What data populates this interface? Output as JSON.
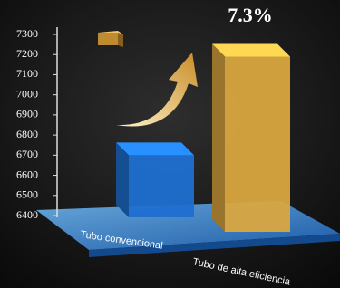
{
  "chart_data": {
    "type": "bar3d",
    "annotation": "7.3%",
    "categories": [
      "Tubo convencional",
      "Tubo de alta eficiencia"
    ],
    "values": [
      6700,
      7190
    ],
    "colors": [
      "#1f6fd1",
      "#d9a640"
    ],
    "ylim": [
      6400,
      7300
    ],
    "yticks": [
      6400,
      6500,
      6600,
      6700,
      6800,
      6900,
      7000,
      7100,
      7200,
      7300
    ]
  }
}
